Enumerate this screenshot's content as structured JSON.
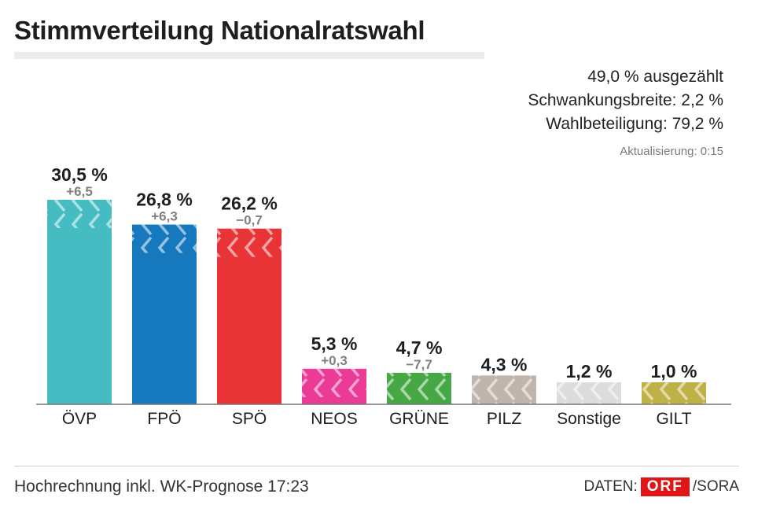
{
  "header": {
    "title": "Stimmverteilung Nationalratswahl",
    "counted": "49,0 % ausgezählt",
    "margin": "Schwankungsbreite: 2,2 %",
    "turnout": "Wahlbeteiligung: 79,2 %",
    "updated": "Aktualisierung: 0:15"
  },
  "footer": {
    "note": "Hochrechnung inkl. WK-Prognose 17:23",
    "source_prefix": "DATEN:",
    "source_logo": "ORF",
    "source_suffix": "/SORA"
  },
  "chart_data": {
    "type": "bar",
    "title": "Stimmverteilung Nationalratswahl",
    "xlabel": "",
    "ylabel": "",
    "ylim": [
      0,
      35
    ],
    "grid": false,
    "categories": [
      "ÖVP",
      "FPÖ",
      "SPÖ",
      "NEOS",
      "GRÜNE",
      "PILZ",
      "Sonstige",
      "GILT"
    ],
    "values": [
      30.5,
      26.8,
      26.2,
      5.3,
      4.7,
      4.3,
      1.2,
      1.0
    ],
    "value_labels": [
      "30,5 %",
      "26,8 %",
      "26,2 %",
      "5,3 %",
      "4,7 %",
      "4,3 %",
      "1,2 %",
      "1,0 %"
    ],
    "change_labels": [
      "+6,5",
      "+6,3",
      "−0,7",
      "+0,3",
      "−7,7",
      "",
      "",
      ""
    ],
    "colors": [
      "#44bcc2",
      "#1678bd",
      "#e83337",
      "#ec3a97",
      "#45a845",
      "#bfb5ad",
      "#dcdcdc",
      "#beb146"
    ]
  }
}
